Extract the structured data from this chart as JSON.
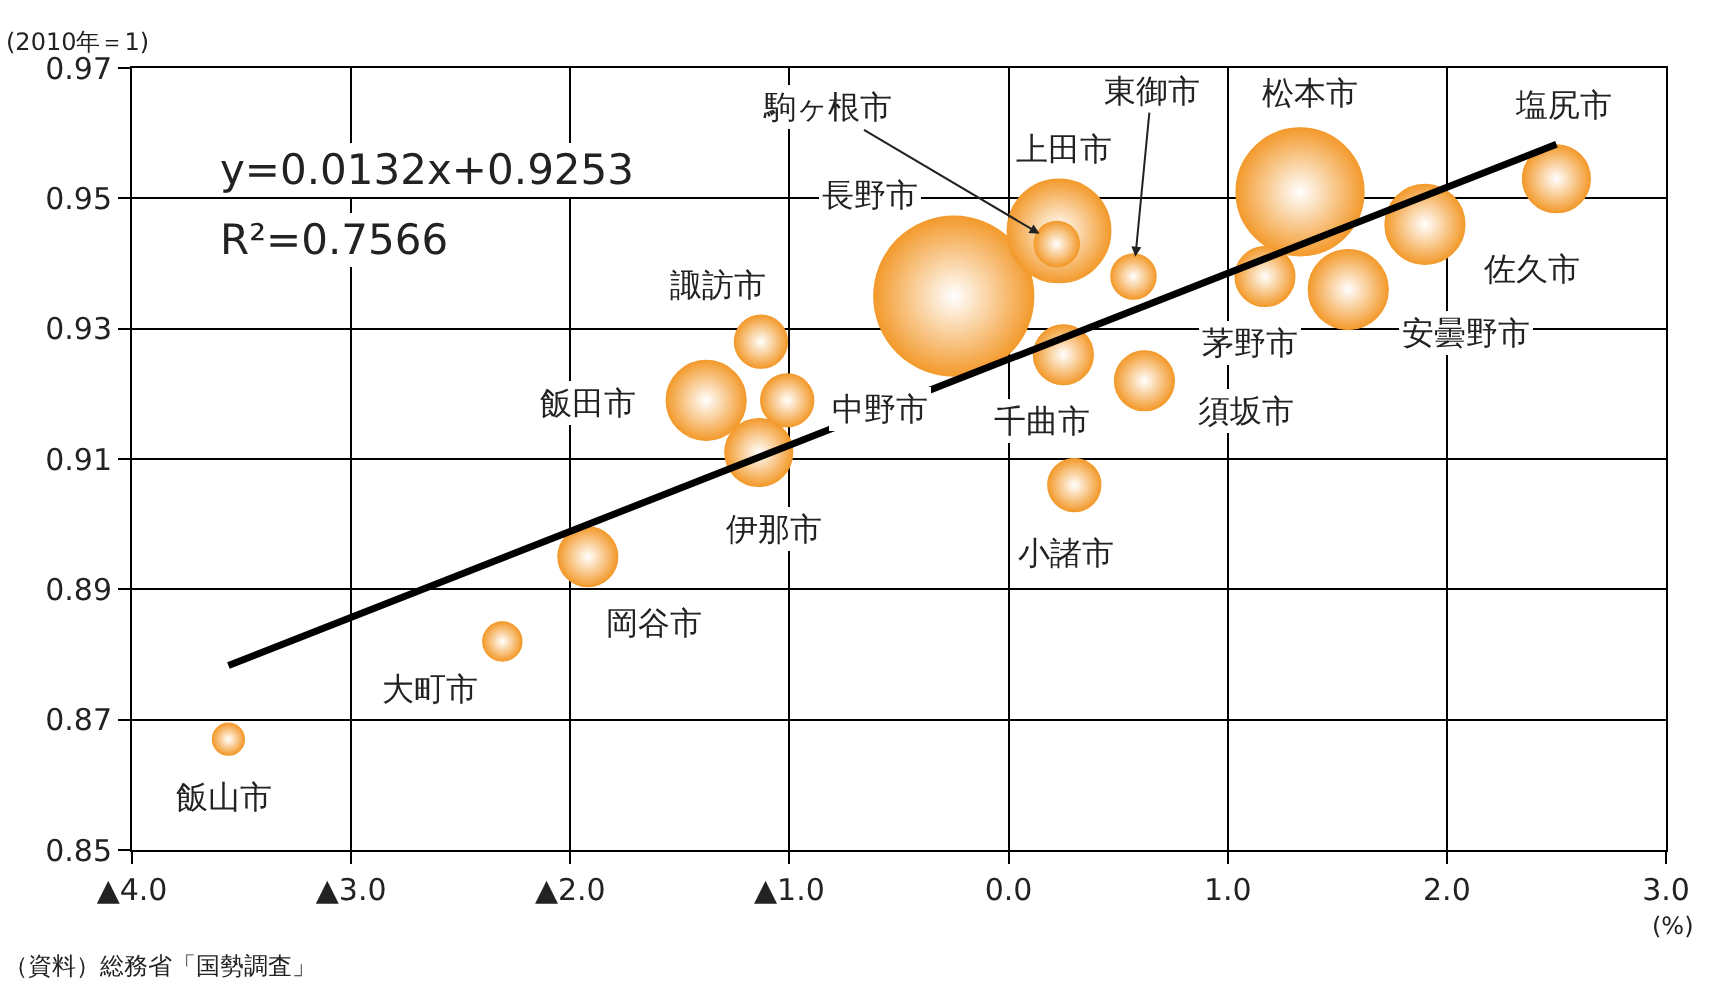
{
  "chart_data": {
    "type": "bubble",
    "ylabel": "(2010年＝1)",
    "xlabel": "(%)",
    "xlim": [
      -4,
      3
    ],
    "xticks": [
      {
        "value": -4,
        "label": "▲4.0"
      },
      {
        "value": -3,
        "label": "▲3.0"
      },
      {
        "value": -2,
        "label": "▲2.0"
      },
      {
        "value": -1,
        "label": "▲1.0"
      },
      {
        "value": 0,
        "label": "0.0"
      },
      {
        "value": 1,
        "label": "1.0"
      },
      {
        "value": 2,
        "label": "2.0"
      },
      {
        "value": 3,
        "label": "3.0"
      }
    ],
    "ylim": [
      0.85,
      0.97
    ],
    "yticks": [
      {
        "value": 0.85,
        "label": "0.85"
      },
      {
        "value": 0.87,
        "label": "0.87"
      },
      {
        "value": 0.89,
        "label": "0.89"
      },
      {
        "value": 0.91,
        "label": "0.91"
      },
      {
        "value": 0.93,
        "label": "0.93"
      },
      {
        "value": 0.95,
        "label": "0.95"
      },
      {
        "value": 0.97,
        "label": "0.97"
      }
    ],
    "grid": true,
    "series": [
      {
        "type": "bubble",
        "marker": "circle",
        "color": "#f39a2c",
        "x": [
          -3.56,
          -2.31,
          -1.92,
          -1.14,
          -1.38,
          -1.13,
          -1.01,
          -0.25,
          0.23,
          0.22,
          0.57,
          0.25,
          0.62,
          0.3,
          1.33,
          1.17,
          1.55,
          1.9,
          2.5
        ],
        "values": [
          0.867,
          0.882,
          0.895,
          0.911,
          0.919,
          0.928,
          0.919,
          0.935,
          0.945,
          0.943,
          0.938,
          0.926,
          0.922,
          0.906,
          0.951,
          0.938,
          0.936,
          0.946,
          0.953
        ],
        "sizes": [
          0.04,
          0.06,
          0.14,
          0.18,
          0.25,
          0.11,
          0.11,
          1,
          0.42,
          0.08,
          0.08,
          0.14,
          0.14,
          0.11,
          0.64,
          0.14,
          0.25,
          0.25,
          0.18
        ]
      },
      {
        "type": "line",
        "color": "#000000",
        "x": [
          -3.56,
          2.5
        ],
        "values": [
          0.8783,
          0.9583
        ]
      }
    ],
    "annotations": [
      "y=0.0132x+0.9253",
      "R²=0.7566",
      "（資料）総務省「国勢調査」",
      {
        "text": "飯山市",
        "x": -3.56,
        "y": 0.867
      },
      {
        "text": "大町市",
        "x": -2.31,
        "y": 0.882
      },
      {
        "text": "岡谷市",
        "x": -1.92,
        "y": 0.895
      },
      {
        "text": "伊那市",
        "x": -1.14,
        "y": 0.911
      },
      {
        "text": "飯田市",
        "x": -1.38,
        "y": 0.919
      },
      {
        "text": "諏訪市",
        "x": -1.13,
        "y": 0.928
      },
      {
        "text": "中野市",
        "x": -1.01,
        "y": 0.919
      },
      {
        "text": "長野市",
        "x": -0.25,
        "y": 0.935
      },
      {
        "text": "上田市",
        "x": 0.23,
        "y": 0.945
      },
      {
        "text": "駒ヶ根市",
        "x": 0.22,
        "y": 0.943
      },
      {
        "text": "東御市",
        "x": 0.57,
        "y": 0.938
      },
      {
        "text": "千曲市",
        "x": 0.25,
        "y": 0.926
      },
      {
        "text": "須坂市",
        "x": 0.62,
        "y": 0.922
      },
      {
        "text": "小諸市",
        "x": 0.3,
        "y": 0.906
      },
      {
        "text": "松本市",
        "x": 1.33,
        "y": 0.951
      },
      {
        "text": "茅野市",
        "x": 1.17,
        "y": 0.938
      },
      {
        "text": "安曇野市",
        "x": 1.55,
        "y": 0.936
      },
      {
        "text": "佐久市",
        "x": 1.9,
        "y": 0.946
      },
      {
        "text": "塩尻市",
        "x": 2.5,
        "y": 0.953
      }
    ]
  }
}
